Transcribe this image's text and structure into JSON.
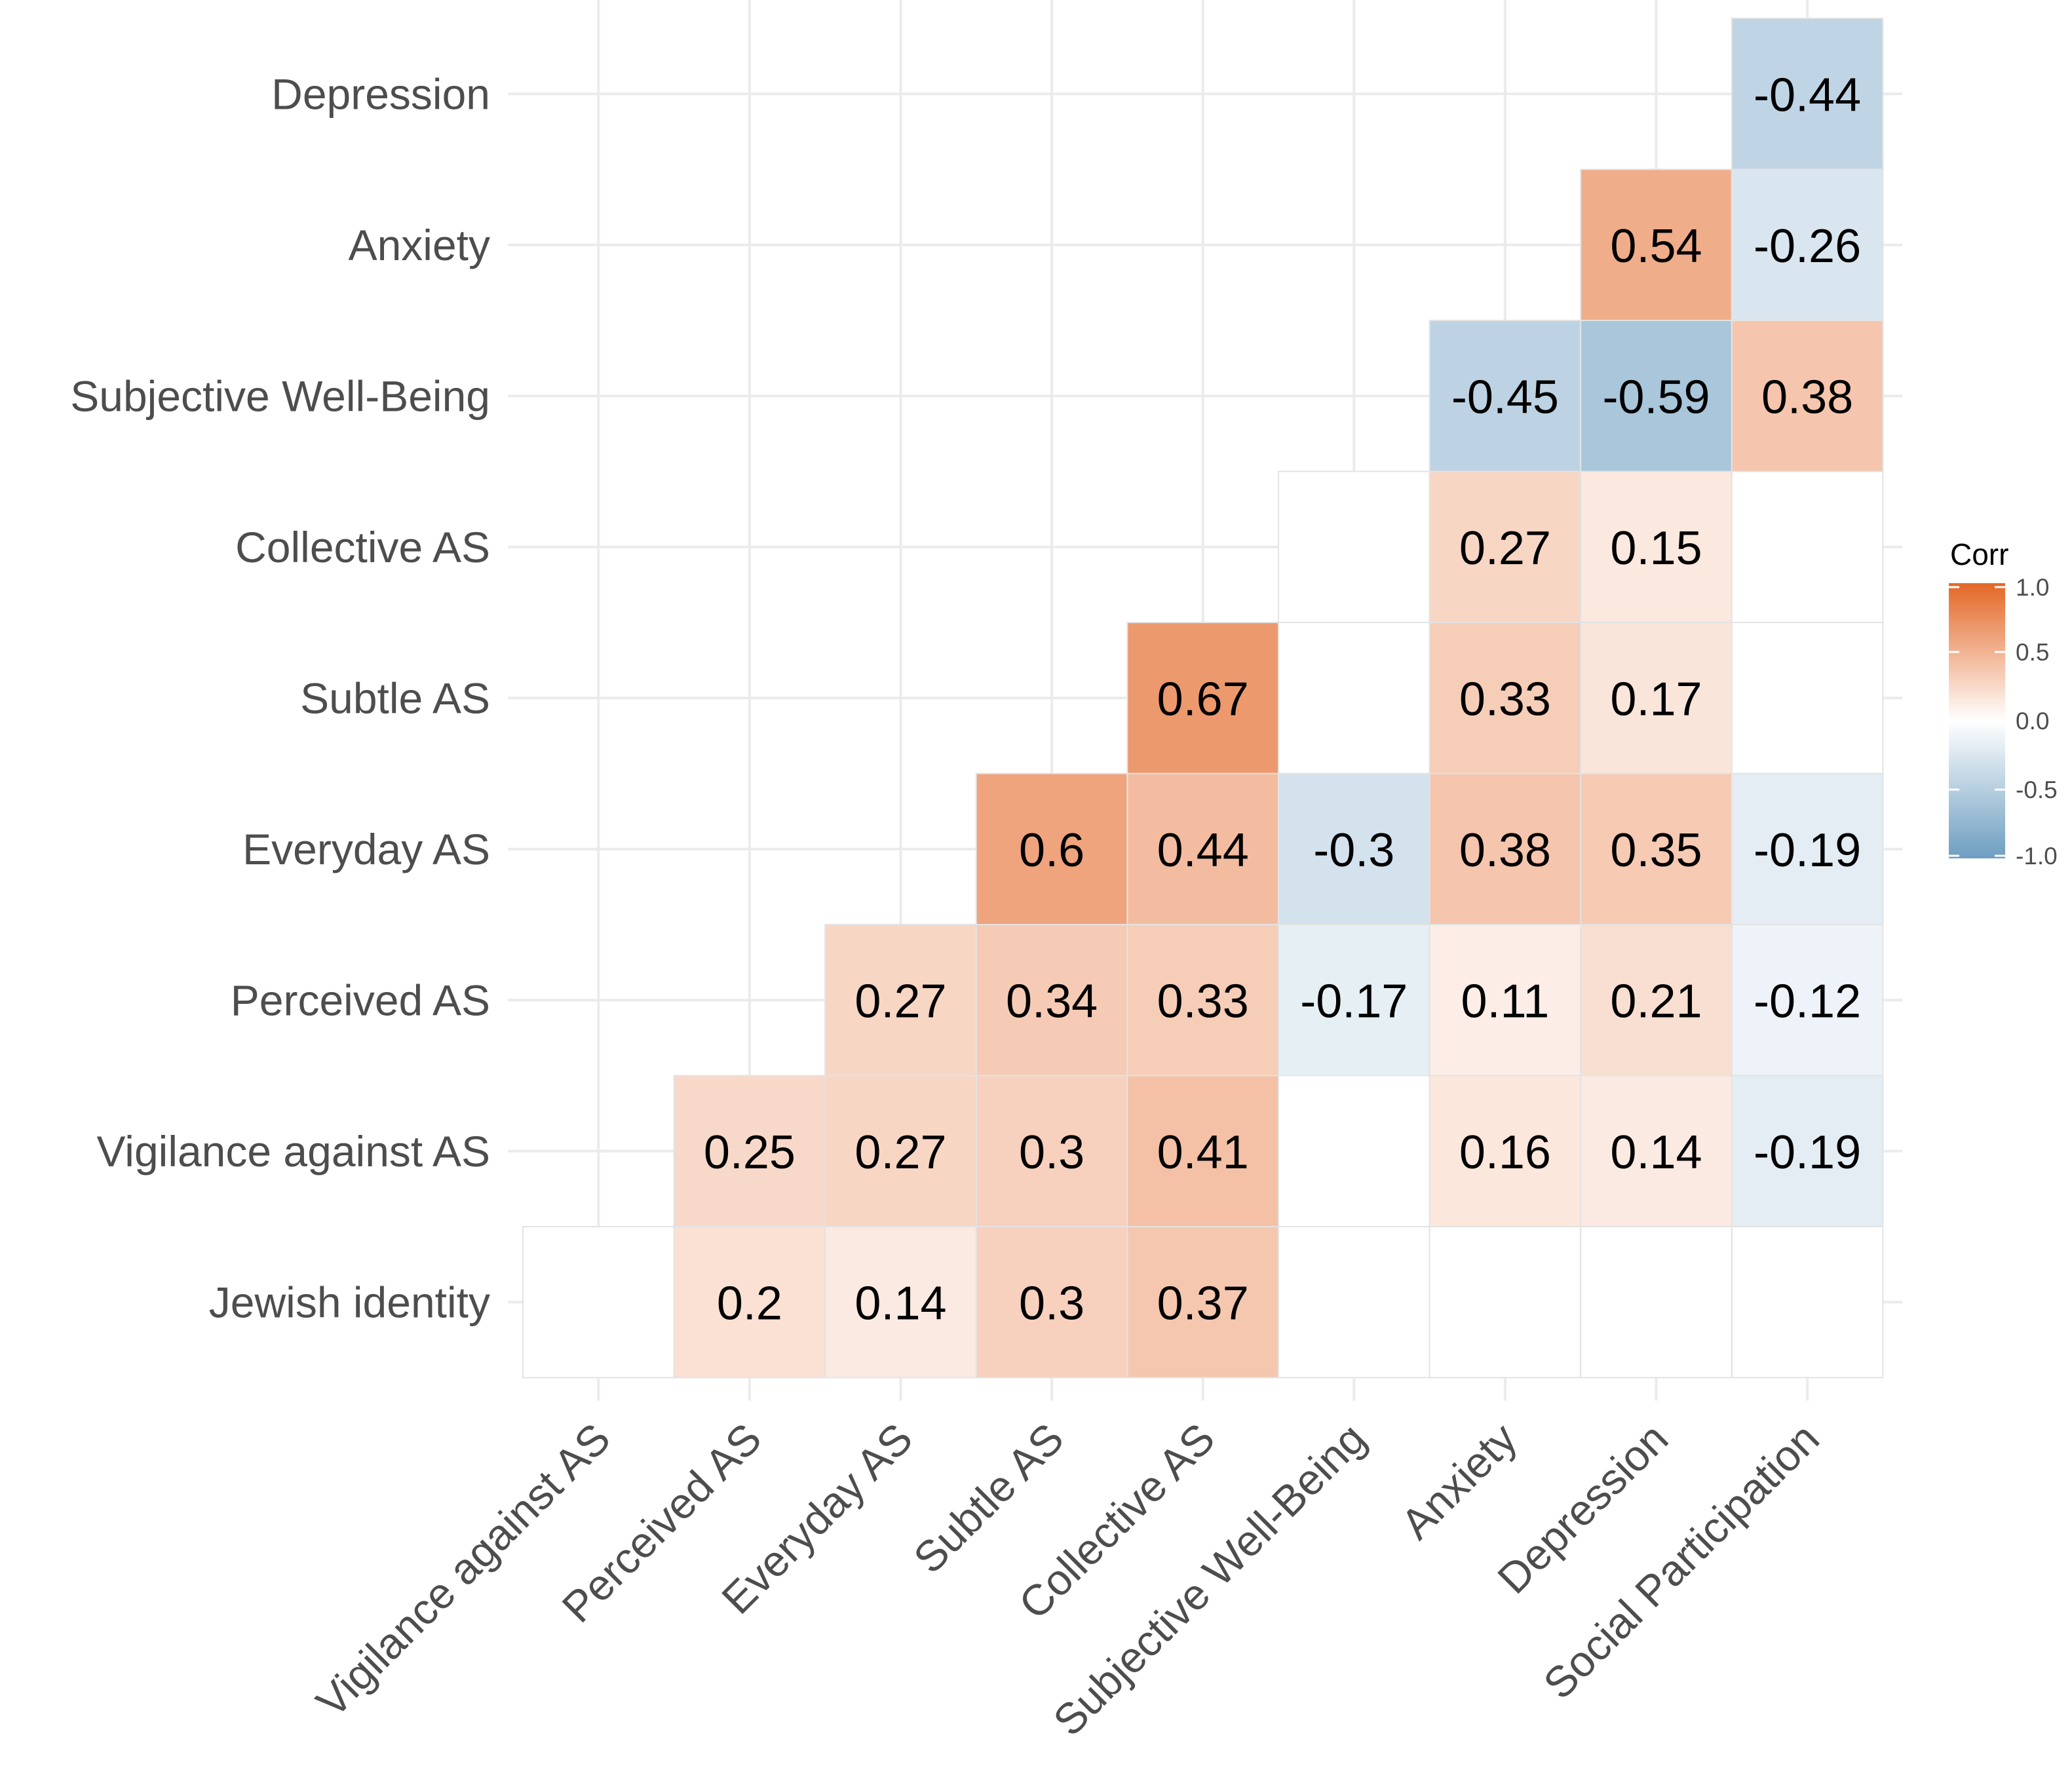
{
  "chart_data": {
    "type": "heatmap",
    "title": "",
    "xlabel": "",
    "ylabel": "",
    "x_categories": [
      "Vigilance against AS",
      "Perceived AS",
      "Everyday AS",
      "Subtle AS",
      "Collective AS",
      "Subjective Well-Being",
      "Anxiety",
      "Depression",
      "Social Participation"
    ],
    "y_categories": [
      "Jewish identity",
      "Vigilance against AS",
      "Perceived AS",
      "Everyday AS",
      "Subtle AS",
      "Collective AS",
      "Subjective Well-Being",
      "Anxiety",
      "Depression"
    ],
    "cells": [
      {
        "x": "Vigilance against AS",
        "y": "Jewish identity",
        "value": null,
        "label": ""
      },
      {
        "x": "Perceived AS",
        "y": "Jewish identity",
        "value": 0.2,
        "label": "0.2"
      },
      {
        "x": "Everyday AS",
        "y": "Jewish identity",
        "value": 0.14,
        "label": "0.14"
      },
      {
        "x": "Subtle AS",
        "y": "Jewish identity",
        "value": 0.3,
        "label": "0.3"
      },
      {
        "x": "Collective AS",
        "y": "Jewish identity",
        "value": 0.37,
        "label": "0.37"
      },
      {
        "x": "Subjective Well-Being",
        "y": "Jewish identity",
        "value": null,
        "label": ""
      },
      {
        "x": "Anxiety",
        "y": "Jewish identity",
        "value": null,
        "label": ""
      },
      {
        "x": "Depression",
        "y": "Jewish identity",
        "value": null,
        "label": ""
      },
      {
        "x": "Social Participation",
        "y": "Jewish identity",
        "value": null,
        "label": ""
      },
      {
        "x": "Perceived AS",
        "y": "Vigilance against AS",
        "value": 0.25,
        "label": "0.25"
      },
      {
        "x": "Everyday AS",
        "y": "Vigilance against AS",
        "value": 0.27,
        "label": "0.27"
      },
      {
        "x": "Subtle AS",
        "y": "Vigilance against AS",
        "value": 0.3,
        "label": "0.3"
      },
      {
        "x": "Collective AS",
        "y": "Vigilance against AS",
        "value": 0.41,
        "label": "0.41"
      },
      {
        "x": "Subjective Well-Being",
        "y": "Vigilance against AS",
        "value": null,
        "label": ""
      },
      {
        "x": "Anxiety",
        "y": "Vigilance against AS",
        "value": 0.16,
        "label": "0.16"
      },
      {
        "x": "Depression",
        "y": "Vigilance against AS",
        "value": 0.14,
        "label": "0.14"
      },
      {
        "x": "Social Participation",
        "y": "Vigilance against AS",
        "value": -0.19,
        "label": "-0.19"
      },
      {
        "x": "Everyday AS",
        "y": "Perceived AS",
        "value": 0.27,
        "label": "0.27"
      },
      {
        "x": "Subtle AS",
        "y": "Perceived AS",
        "value": 0.34,
        "label": "0.34"
      },
      {
        "x": "Collective AS",
        "y": "Perceived AS",
        "value": 0.33,
        "label": "0.33"
      },
      {
        "x": "Subjective Well-Being",
        "y": "Perceived AS",
        "value": -0.17,
        "label": "-0.17"
      },
      {
        "x": "Anxiety",
        "y": "Perceived AS",
        "value": 0.11,
        "label": "0.11"
      },
      {
        "x": "Depression",
        "y": "Perceived AS",
        "value": 0.21,
        "label": "0.21"
      },
      {
        "x": "Social Participation",
        "y": "Perceived AS",
        "value": -0.12,
        "label": "-0.12"
      },
      {
        "x": "Subtle AS",
        "y": "Everyday AS",
        "value": 0.6,
        "label": "0.6"
      },
      {
        "x": "Collective AS",
        "y": "Everyday AS",
        "value": 0.44,
        "label": "0.44"
      },
      {
        "x": "Subjective Well-Being",
        "y": "Everyday AS",
        "value": -0.3,
        "label": "-0.3"
      },
      {
        "x": "Anxiety",
        "y": "Everyday AS",
        "value": 0.38,
        "label": "0.38"
      },
      {
        "x": "Depression",
        "y": "Everyday AS",
        "value": 0.35,
        "label": "0.35"
      },
      {
        "x": "Social Participation",
        "y": "Everyday AS",
        "value": -0.19,
        "label": "-0.19"
      },
      {
        "x": "Collective AS",
        "y": "Subtle AS",
        "value": 0.67,
        "label": "0.67"
      },
      {
        "x": "Subjective Well-Being",
        "y": "Subtle AS",
        "value": null,
        "label": ""
      },
      {
        "x": "Anxiety",
        "y": "Subtle AS",
        "value": 0.33,
        "label": "0.33"
      },
      {
        "x": "Depression",
        "y": "Subtle AS",
        "value": 0.17,
        "label": "0.17"
      },
      {
        "x": "Social Participation",
        "y": "Subtle AS",
        "value": null,
        "label": ""
      },
      {
        "x": "Subjective Well-Being",
        "y": "Collective AS",
        "value": null,
        "label": ""
      },
      {
        "x": "Anxiety",
        "y": "Collective AS",
        "value": 0.27,
        "label": "0.27"
      },
      {
        "x": "Depression",
        "y": "Collective AS",
        "value": 0.15,
        "label": "0.15"
      },
      {
        "x": "Social Participation",
        "y": "Collective AS",
        "value": null,
        "label": ""
      },
      {
        "x": "Anxiety",
        "y": "Subjective Well-Being",
        "value": -0.45,
        "label": "-0.45"
      },
      {
        "x": "Depression",
        "y": "Subjective Well-Being",
        "value": -0.59,
        "label": "-0.59"
      },
      {
        "x": "Social Participation",
        "y": "Subjective Well-Being",
        "value": 0.38,
        "label": "0.38"
      },
      {
        "x": "Depression",
        "y": "Anxiety",
        "value": 0.54,
        "label": "0.54"
      },
      {
        "x": "Social Participation",
        "y": "Anxiety",
        "value": -0.26,
        "label": "-0.26"
      },
      {
        "x": "Social Participation",
        "y": "Depression",
        "value": -0.44,
        "label": "-0.44"
      }
    ],
    "legend": {
      "title": "Corr",
      "min": -1.0,
      "max": 1.0,
      "ticks": [
        "1.0",
        "0.5",
        "0.0",
        "-0.5",
        "-1.0"
      ],
      "tick_values": [
        1.0,
        0.5,
        0.0,
        -0.5,
        -1.0
      ],
      "low_color": "#6d9ec1",
      "mid_color": "#ffffff",
      "high_color": "#e46726",
      "position": "right"
    },
    "grid": true
  }
}
